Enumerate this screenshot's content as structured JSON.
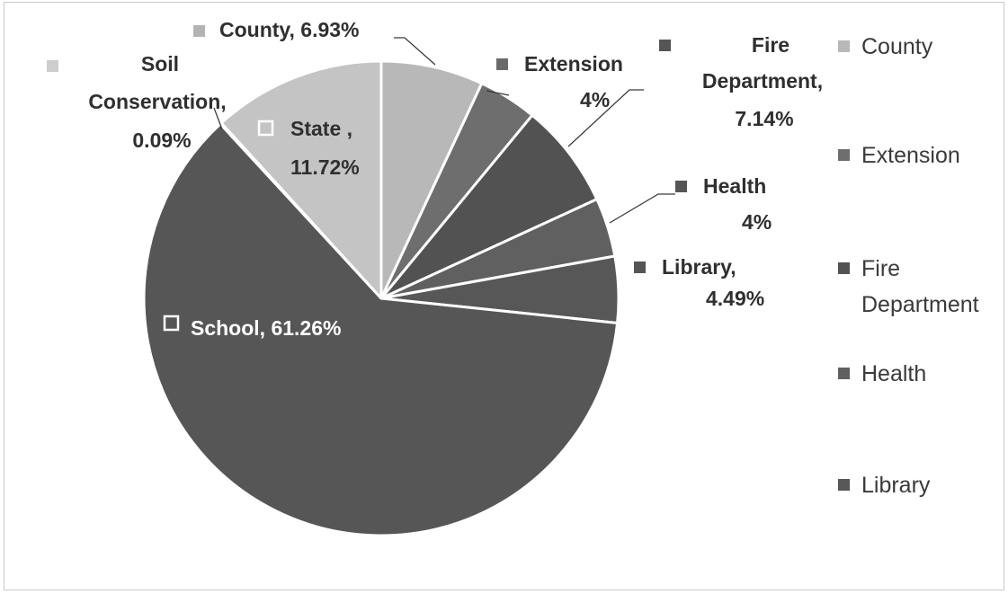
{
  "chart_data": {
    "type": "pie",
    "categories": [
      "County",
      "Extension",
      "Fire Department",
      "Health",
      "Library",
      "School",
      "Soil Conservation",
      "State"
    ],
    "values": [
      6.93,
      4,
      7.14,
      4,
      4.49,
      61.26,
      0.09,
      11.72
    ],
    "colors": [
      "#b8b8b8",
      "#6e6e6e",
      "#525252",
      "#606060",
      "#575757",
      "#565656",
      "#d2d2d2",
      "#c4c4c4"
    ],
    "data_labels": [
      [
        "County, 6.93%"
      ],
      [
        "Extension",
        "4%"
      ],
      [
        "Fire",
        "Department,",
        "7.14%"
      ],
      [
        "Health",
        "4%"
      ],
      [
        "Library,",
        "4.49%"
      ],
      [
        "School, 61.26%"
      ],
      [
        "Soil",
        "Conservation,",
        "0.09%"
      ],
      [
        "State ,",
        "11.72%"
      ]
    ],
    "legend": {
      "placement": "right",
      "entries": [
        [
          "County"
        ],
        [
          "Extension"
        ],
        [
          "Fire",
          "Department"
        ],
        [
          "Health"
        ],
        [
          "Library"
        ]
      ]
    }
  }
}
